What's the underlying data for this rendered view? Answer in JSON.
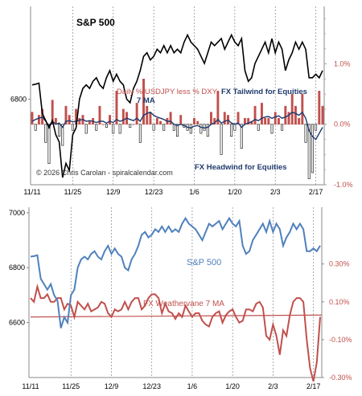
{
  "chart_data": [
    {
      "type": "bar",
      "title": "S&P 500",
      "x_ticks": [
        "11/11",
        "11/25",
        "12/9",
        "12/23",
        "1/6",
        "1/20",
        "2/3",
        "2/17"
      ],
      "left_axis": {
        "ticks": [
          6800
        ],
        "tick_labels": [
          "6800"
        ],
        "range": [
          6560,
          7060
        ]
      },
      "right_axis": {
        "ticks": [
          1.0,
          0.0,
          -1.0
        ],
        "tick_labels": [
          "1.0%",
          "0.0%",
          "-1.0%"
        ],
        "range": [
          -1.0,
          1.95
        ]
      },
      "series": [
        {
          "name": "S&P 500",
          "type": "line",
          "axis": "left",
          "color": "#000000",
          "values": [
            6840,
            6842,
            6845,
            6760,
            6740,
            6720,
            6740,
            6700,
            6680,
            6580,
            6620,
            6600,
            6700,
            6720,
            6800,
            6830,
            6840,
            6830,
            6850,
            6860,
            6840,
            6830,
            6860,
            6880,
            6850,
            6870,
            6850,
            6840,
            6800,
            6790,
            6830,
            6850,
            6880,
            6920,
            6930,
            6910,
            6920,
            6940,
            6930,
            6950,
            6930,
            6950,
            6930,
            6940,
            6930,
            6960,
            6980,
            6960,
            6950,
            6940,
            6920,
            6900,
            6930,
            6960,
            6950,
            6960,
            6970,
            6940,
            6960,
            6980,
            6960,
            6950,
            6970,
            6880,
            6850,
            6860,
            6900,
            6920,
            6940,
            6960,
            6930,
            6970,
            6930,
            6960,
            6940,
            6880,
            6910,
            6930,
            6960,
            6940,
            6960,
            6940,
            6860,
            6860,
            6870,
            6860,
            6880
          ]
        },
        {
          "name": "Daily % USDJPY less % DXY",
          "type": "bar",
          "axis": "right",
          "color_positive": "#c0504d",
          "color_negative": "#ffffff",
          "values": [
            0.2,
            -0.1,
            0.15,
            0.25,
            -0.3,
            -0.65,
            0.4,
            0.1,
            -0.2,
            -0.35,
            0.3,
            0.15,
            -0.1,
            0.25,
            0.1,
            0.15,
            -0.15,
            0.05,
            0.1,
            -0.1,
            0.3,
            0.0,
            -0.05,
            0.15,
            -0.15,
            0.55,
            -0.15,
            0.25,
            0.2,
            -0.05,
            0.0,
            0.35,
            -0.3,
            0.75,
            0.3,
            0.2,
            -0.1,
            0.1,
            0.05,
            -0.1,
            0.1,
            0.2,
            -0.1,
            -0.2,
            0.15,
            -0.05,
            -0.1,
            -0.15,
            0.1,
            0.05,
            -0.15,
            -0.1,
            -0.2,
            0.2,
            0.1,
            0.55,
            -0.5,
            0.2,
            0.15,
            -0.2,
            -0.1,
            0.2,
            -0.4,
            0.1,
            0.1,
            0.05,
            0.3,
            -0.1,
            0.35,
            0.1,
            0.1,
            -0.15,
            0.2,
            0.1,
            -0.1,
            0.3,
            0.2,
            0.5,
            0.3,
            0.1,
            0.5,
            -0.3,
            -0.9,
            -0.8,
            -0.1,
            0.55,
            0.3
          ]
        },
        {
          "name": "7 MA",
          "type": "line",
          "axis": "right",
          "color": "#1f3a6e",
          "values": [
            0.05,
            0.08,
            0.1,
            0.12,
            0.05,
            -0.02,
            0.05,
            0.0,
            0.02,
            -0.05,
            0.05,
            0.06,
            0.04,
            0.05,
            0.07,
            0.08,
            0.05,
            0.06,
            0.05,
            0.03,
            0.05,
            0.05,
            0.02,
            0.05,
            0.03,
            0.08,
            0.05,
            0.07,
            0.1,
            0.08,
            0.06,
            0.1,
            0.05,
            0.15,
            0.18,
            0.2,
            0.15,
            0.12,
            0.1,
            0.08,
            0.05,
            0.05,
            0.0,
            -0.02,
            0.0,
            -0.02,
            -0.05,
            -0.06,
            -0.03,
            -0.02,
            -0.05,
            -0.06,
            -0.05,
            0.0,
            0.02,
            0.08,
            0.02,
            0.05,
            0.07,
            0.02,
            0.0,
            0.02,
            -0.05,
            0.0,
            0.02,
            0.04,
            0.08,
            0.06,
            0.1,
            0.12,
            0.13,
            0.1,
            0.12,
            0.14,
            0.1,
            0.12,
            0.15,
            0.2,
            0.18,
            0.15,
            0.2,
            0.1,
            -0.1,
            -0.2,
            -0.25,
            -0.15,
            -0.05
          ]
        }
      ],
      "annotations": [
        "Daily % USDJPY less % DXY",
        "7 MA",
        "FX Tailwind for Equities",
        "FX Headwind for Equities",
        "© 2026 Chris Carolan - spiralcalendar.com"
      ]
    },
    {
      "type": "line",
      "x_ticks": [
        "11/11",
        "11/25",
        "12/9",
        "12/23",
        "1/6",
        "1/20",
        "2/3",
        "2/17"
      ],
      "left_axis": {
        "ticks": [
          7000,
          6800,
          6600
        ],
        "tick_labels": [
          "7000",
          "6800",
          "6600"
        ],
        "range": [
          6400,
          7020
        ]
      },
      "right_axis": {
        "ticks": [
          0.3,
          0.1,
          -0.1,
          -0.3
        ],
        "tick_labels": [
          "0.30%",
          "0.10%",
          "-0.10%",
          "-0.30%"
        ],
        "range": [
          -0.3,
          0.6
        ]
      },
      "series": [
        {
          "name": "S&P 500",
          "axis": "left",
          "color": "#4f81bd",
          "values": [
            6840,
            6842,
            6845,
            6760,
            6740,
            6720,
            6740,
            6700,
            6680,
            6580,
            6620,
            6600,
            6700,
            6720,
            6800,
            6830,
            6840,
            6830,
            6850,
            6860,
            6840,
            6830,
            6860,
            6880,
            6850,
            6870,
            6850,
            6840,
            6800,
            6790,
            6830,
            6850,
            6880,
            6920,
            6930,
            6910,
            6920,
            6940,
            6930,
            6950,
            6930,
            6950,
            6930,
            6940,
            6930,
            6960,
            6980,
            6960,
            6950,
            6940,
            6920,
            6900,
            6930,
            6960,
            6950,
            6960,
            6970,
            6940,
            6960,
            6980,
            6960,
            6950,
            6970,
            6880,
            6850,
            6860,
            6900,
            6920,
            6940,
            6960,
            6930,
            6970,
            6930,
            6960,
            6940,
            6880,
            6910,
            6930,
            6960,
            6940,
            6960,
            6940,
            6860,
            6860,
            6870,
            6860,
            6880
          ]
        },
        {
          "name": "FX Weathervane 7 MA",
          "axis": "right",
          "color": "#c0504d",
          "values": [
            0.12,
            0.1,
            0.18,
            0.12,
            0.12,
            0.14,
            0.1,
            0.1,
            0.12,
            0.12,
            0.06,
            0.09,
            0.08,
            0.02,
            0.1,
            0.08,
            0.06,
            0.09,
            0.05,
            0.06,
            0.07,
            0.1,
            0.09,
            0.04,
            0.02,
            0.06,
            0.05,
            0.06,
            0.1,
            0.06,
            0.1,
            0.12,
            0.12,
            0.06,
            0.08,
            0.12,
            0.14,
            0.14,
            0.12,
            0.04,
            0.09,
            0.05,
            0.04,
            0.01,
            0.04,
            0.02,
            0.08,
            0.05,
            0.02,
            0.04,
            0.04,
            0.0,
            -0.02,
            -0.03,
            0.02,
            0.04,
            0.05,
            -0.01,
            0.03,
            0.05,
            0.06,
            0.02,
            -0.01,
            0.0,
            0.06,
            0.06,
            0.05,
            0.09,
            0.1,
            0.07,
            -0.08,
            -0.1,
            -0.02,
            -0.08,
            -0.18,
            -0.05,
            -0.08,
            0.03,
            0.1,
            0.12,
            0.12,
            0.1,
            -0.1,
            -0.25,
            -0.32,
            -0.22,
            0.02
          ]
        },
        {
          "name": "trendline",
          "axis": "right",
          "color": "#c0504d",
          "values": [
            0.02,
            0.03
          ]
        }
      ],
      "annotations": [
        "S&P 500",
        "FX Weathervane 7 MA"
      ]
    }
  ]
}
